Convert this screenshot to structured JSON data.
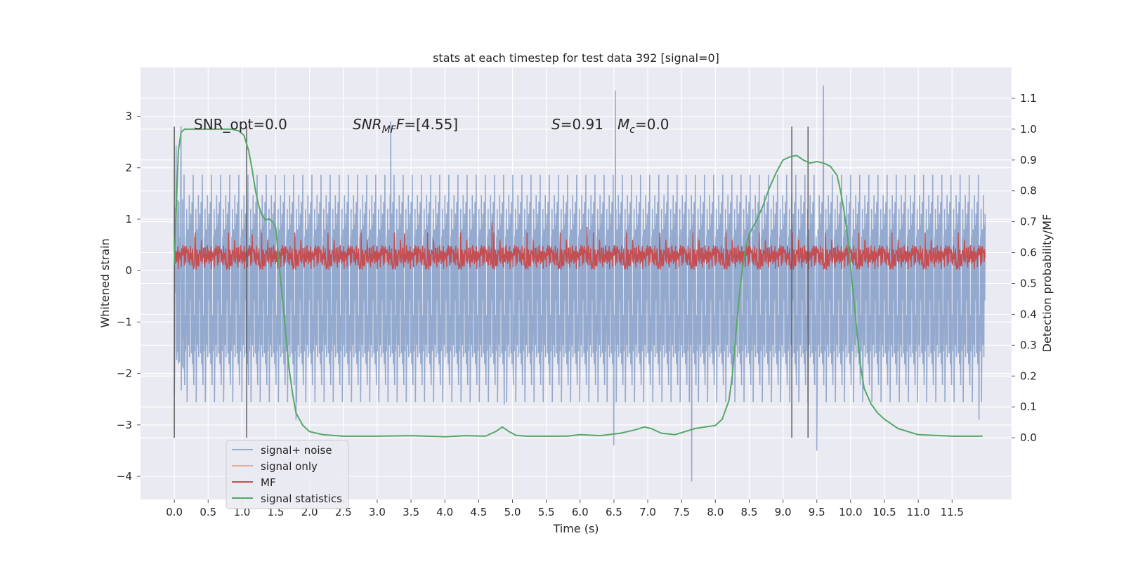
{
  "chart_data": {
    "type": "line",
    "title": "stats at each timestep for test data 392 [signal=0]",
    "xlabel": "Time (s)",
    "ylabel_left": "Whitened strain",
    "ylabel_right": "Detection probability/MF",
    "xlim": [
      -0.5,
      12.38
    ],
    "ylim_left": [
      -4.45,
      3.95
    ],
    "ylim_right": [
      -0.2,
      1.2
    ],
    "x_ticks": [
      0.0,
      0.5,
      1.0,
      1.5,
      2.0,
      2.5,
      3.0,
      3.5,
      4.0,
      4.5,
      5.0,
      5.5,
      6.0,
      6.5,
      7.0,
      7.5,
      8.0,
      8.5,
      9.0,
      9.5,
      10.0,
      10.5,
      11.0,
      11.5
    ],
    "x_tick_labels": [
      "0.0",
      "0.5",
      "1.0",
      "1.5",
      "2.0",
      "2.5",
      "3.0",
      "3.5",
      "4.0",
      "4.5",
      "5.0",
      "5.5",
      "6.0",
      "6.5",
      "7.0",
      "7.5",
      "8.0",
      "8.5",
      "9.0",
      "9.5",
      "10.0",
      "10.5",
      "11.0",
      "11.5"
    ],
    "y_left_ticks": [
      -4,
      -3,
      -2,
      -1,
      0,
      1,
      2,
      3
    ],
    "y_left_tick_labels": [
      "−4",
      "−3",
      "−2",
      "−1",
      "0",
      "1",
      "2",
      "3"
    ],
    "y_right_ticks": [
      0.0,
      0.1,
      0.2,
      0.3,
      0.4,
      0.5,
      0.6,
      0.7,
      0.8,
      0.9,
      1.0,
      1.1
    ],
    "y_right_tick_labels": [
      "0.0",
      "0.1",
      "0.2",
      "0.3",
      "0.4",
      "0.5",
      "0.6",
      "0.7",
      "0.8",
      "0.9",
      "1.0",
      "1.1"
    ],
    "grid": true,
    "annotations": {
      "snr_opt": "SNR_opt=0.0",
      "snr_mf_name": "SNR",
      "snr_mf_sub": "MF",
      "snr_mf_val": "=[4.55]",
      "s_name": "S",
      "s_val": "=0.91",
      "mc_name": "M",
      "mc_sub": "c",
      "mc_val": "=0.0"
    },
    "legend": {
      "position": "lower-left",
      "entries": [
        "signal+ noise",
        "signal only",
        "MF",
        "signal statistics"
      ]
    },
    "noise_band": {
      "time_range": [
        0.0,
        11.99
      ],
      "typical_range": [
        -2.1,
        1.6
      ],
      "extremes": [
        [
          0.0,
          -2.4
        ],
        [
          1.8,
          -2.9
        ],
        [
          3.2,
          2.9
        ],
        [
          4.88,
          -2.6
        ],
        [
          6.52,
          3.5
        ],
        [
          6.5,
          -3.4
        ],
        [
          7.65,
          -4.1
        ],
        [
          9.5,
          -3.5
        ],
        [
          9.6,
          3.6
        ],
        [
          11.9,
          -2.9
        ]
      ]
    },
    "mf_band": {
      "time_range": [
        0.0,
        11.99
      ],
      "typical_range": [
        0.02,
        0.5
      ],
      "peaks": [
        [
          0.3,
          0.65
        ],
        [
          1.15,
          0.7
        ],
        [
          3.4,
          0.72
        ],
        [
          4.7,
          0.95
        ],
        [
          6.1,
          0.85
        ],
        [
          8.5,
          0.72
        ]
      ]
    },
    "vertical_markers": [
      0.0,
      1.07,
      9.13,
      9.37
    ],
    "vertical_marker_range": [
      -3.25,
      2.8
    ],
    "series": [
      {
        "name": "signal statistics",
        "axis": "right",
        "x": [
          0.0,
          0.03,
          0.06,
          0.1,
          0.15,
          0.2,
          0.3,
          0.5,
          0.7,
          0.85,
          0.95,
          1.03,
          1.1,
          1.15,
          1.2,
          1.25,
          1.3,
          1.35,
          1.4,
          1.45,
          1.5,
          1.55,
          1.6,
          1.65,
          1.7,
          1.75,
          1.8,
          1.9,
          2.0,
          2.2,
          2.5,
          3.0,
          3.5,
          4.0,
          4.3,
          4.6,
          4.75,
          4.85,
          4.95,
          5.05,
          5.2,
          5.5,
          5.8,
          6.0,
          6.3,
          6.6,
          6.8,
          6.95,
          7.05,
          7.2,
          7.4,
          7.7,
          8.0,
          8.1,
          8.2,
          8.25,
          8.3,
          8.35,
          8.4,
          8.45,
          8.5,
          8.6,
          8.7,
          8.8,
          8.9,
          9.0,
          9.1,
          9.2,
          9.3,
          9.4,
          9.5,
          9.6,
          9.7,
          9.8,
          9.85,
          9.9,
          9.95,
          10.0,
          10.05,
          10.1,
          10.15,
          10.2,
          10.3,
          10.4,
          10.5,
          10.7,
          11.0,
          11.5,
          11.95
        ],
        "y": [
          0.56,
          0.75,
          0.93,
          0.99,
          1.0,
          1.0,
          1.0,
          1.0,
          1.0,
          1.0,
          0.995,
          0.98,
          0.93,
          0.87,
          0.8,
          0.75,
          0.72,
          0.705,
          0.71,
          0.7,
          0.68,
          0.56,
          0.45,
          0.33,
          0.22,
          0.14,
          0.08,
          0.04,
          0.02,
          0.01,
          0.005,
          0.005,
          0.007,
          0.003,
          0.007,
          0.005,
          0.02,
          0.035,
          0.02,
          0.008,
          0.005,
          0.005,
          0.005,
          0.01,
          0.007,
          0.015,
          0.025,
          0.035,
          0.03,
          0.015,
          0.01,
          0.03,
          0.04,
          0.06,
          0.12,
          0.2,
          0.33,
          0.45,
          0.55,
          0.62,
          0.66,
          0.7,
          0.75,
          0.81,
          0.86,
          0.9,
          0.91,
          0.915,
          0.9,
          0.89,
          0.895,
          0.89,
          0.88,
          0.85,
          0.8,
          0.74,
          0.66,
          0.55,
          0.44,
          0.33,
          0.23,
          0.16,
          0.11,
          0.08,
          0.06,
          0.03,
          0.01,
          0.005,
          0.005
        ]
      }
    ]
  }
}
